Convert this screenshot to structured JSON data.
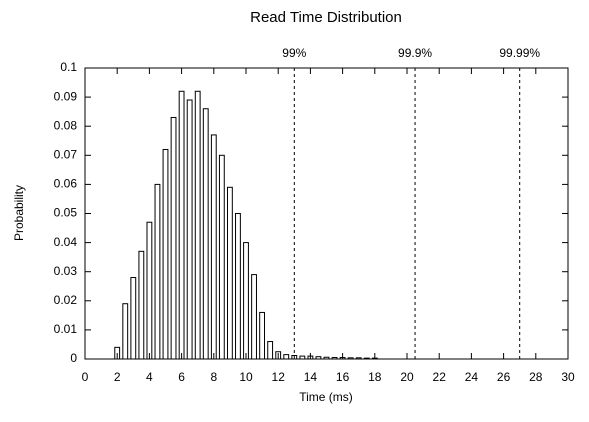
{
  "chart_data": {
    "type": "bar",
    "title": "Read Time Distribution",
    "x_label": "Time (ms)",
    "y_label": "Probability",
    "x": [
      2,
      2.5,
      3,
      3.5,
      4,
      4.5,
      5,
      5.5,
      6,
      6.5,
      7,
      7.5,
      8,
      8.5,
      9,
      9.5,
      10,
      10.5,
      11,
      11.5,
      12,
      12.5,
      13,
      13.5,
      14,
      14.5,
      15,
      15.5,
      16,
      16.5,
      17,
      17.5,
      18
    ],
    "values": [
      0.004,
      0.019,
      0.028,
      0.037,
      0.047,
      0.06,
      0.072,
      0.083,
      0.092,
      0.089,
      0.092,
      0.086,
      0.077,
      0.07,
      0.059,
      0.05,
      0.04,
      0.029,
      0.016,
      0.006,
      0.0025,
      0.0015,
      0.0012,
      0.001,
      0.001,
      0.0008,
      0.0006,
      0.0005,
      0.0005,
      0.0004,
      0.0004,
      0.0003,
      0.0003
    ],
    "color": "#000000",
    "xlim": [
      0,
      30
    ],
    "xticks": [
      0,
      2,
      4,
      6,
      8,
      10,
      12,
      14,
      16,
      18,
      20,
      22,
      24,
      26,
      28,
      30
    ],
    "ylim": [
      0,
      0.1
    ],
    "yticks": [
      0,
      0.01,
      0.02,
      0.03,
      0.04,
      0.05,
      0.06,
      0.07,
      0.08,
      0.09,
      0.1
    ],
    "annotations": [
      {
        "x": 13,
        "label": "99%"
      },
      {
        "x": 20.5,
        "label": "99.9%"
      },
      {
        "x": 27,
        "label": "99.99%"
      }
    ]
  }
}
